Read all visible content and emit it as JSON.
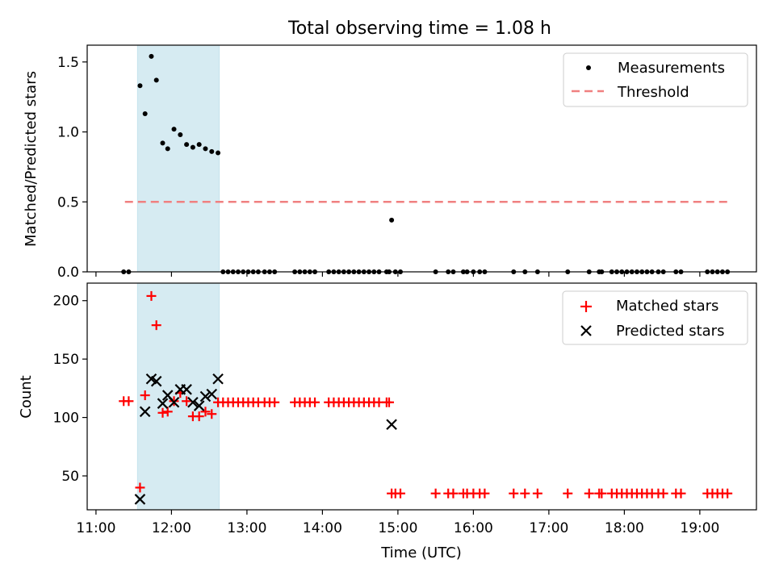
{
  "figure": {
    "title": "Total observing time = 1.08 h",
    "xlabel": "Time (UTC)"
  },
  "chart_data": [
    {
      "type": "scatter",
      "ylabel": "Matched/Predicted stars",
      "xlim": [
        "10:53",
        "19:45"
      ],
      "ylim": [
        0,
        1.62
      ],
      "yticks": [
        "0.0",
        "0.5",
        "1.0",
        "1.5"
      ],
      "yticks_values": [
        0,
        0.5,
        1.0,
        1.5
      ],
      "legend": {
        "placement": "upper right",
        "entries": [
          "Measurements",
          "Threshold"
        ]
      },
      "shaded_span": [
        "11:33",
        "12:38"
      ],
      "threshold": {
        "name": "Threshold",
        "x": [
          "11:23",
          "19:23"
        ],
        "y": 0.5,
        "color": "#f08080"
      },
      "series": [
        {
          "name": "Measurements",
          "color": "#000000",
          "points": [
            [
              "11:22",
              0
            ],
            [
              "11:26",
              0
            ],
            [
              "11:35",
              1.33
            ],
            [
              "11:39",
              1.13
            ],
            [
              "11:44",
              1.54
            ],
            [
              "11:48",
              1.37
            ],
            [
              "11:53",
              0.92
            ],
            [
              "11:57",
              0.88
            ],
            [
              "12:02",
              1.02
            ],
            [
              "12:07",
              0.98
            ],
            [
              "12:12",
              0.91
            ],
            [
              "12:17",
              0.89
            ],
            [
              "12:22",
              0.91
            ],
            [
              "12:27",
              0.88
            ],
            [
              "12:32",
              0.86
            ],
            [
              "12:37",
              0.85
            ],
            [
              "12:41",
              0
            ],
            [
              "12:45",
              0
            ],
            [
              "12:49",
              0
            ],
            [
              "12:53",
              0
            ],
            [
              "12:57",
              0
            ],
            [
              "13:01",
              0
            ],
            [
              "13:05",
              0
            ],
            [
              "13:09",
              0
            ],
            [
              "13:14",
              0
            ],
            [
              "13:18",
              0
            ],
            [
              "13:22",
              0
            ],
            [
              "13:38",
              0
            ],
            [
              "13:42",
              0
            ],
            [
              "13:46",
              0
            ],
            [
              "13:50",
              0
            ],
            [
              "13:54",
              0
            ],
            [
              "14:05",
              0
            ],
            [
              "14:09",
              0
            ],
            [
              "14:13",
              0
            ],
            [
              "14:17",
              0
            ],
            [
              "14:21",
              0
            ],
            [
              "14:25",
              0
            ],
            [
              "14:29",
              0
            ],
            [
              "14:33",
              0
            ],
            [
              "14:37",
              0
            ],
            [
              "14:41",
              0
            ],
            [
              "14:45",
              0
            ],
            [
              "14:51",
              0
            ],
            [
              "14:53",
              0
            ],
            [
              "14:55",
              0.37
            ],
            [
              "14:58",
              0
            ],
            [
              "15:02",
              0
            ],
            [
              "15:30",
              0
            ],
            [
              "15:40",
              0
            ],
            [
              "15:44",
              0
            ],
            [
              "15:52",
              0
            ],
            [
              "15:55",
              0
            ],
            [
              "16:00",
              0
            ],
            [
              "16:05",
              0
            ],
            [
              "16:09",
              0
            ],
            [
              "16:32",
              0
            ],
            [
              "16:41",
              0
            ],
            [
              "16:51",
              0
            ],
            [
              "17:15",
              0
            ],
            [
              "17:32",
              0
            ],
            [
              "17:40",
              0
            ],
            [
              "17:42",
              0
            ],
            [
              "17:50",
              0
            ],
            [
              "17:54",
              0
            ],
            [
              "17:58",
              0
            ],
            [
              "18:02",
              0
            ],
            [
              "18:06",
              0
            ],
            [
              "18:10",
              0
            ],
            [
              "18:14",
              0
            ],
            [
              "18:18",
              0
            ],
            [
              "18:22",
              0
            ],
            [
              "18:27",
              0
            ],
            [
              "18:31",
              0
            ],
            [
              "18:41",
              0
            ],
            [
              "18:45",
              0
            ],
            [
              "19:06",
              0
            ],
            [
              "19:10",
              0
            ],
            [
              "19:14",
              0
            ],
            [
              "19:18",
              0
            ],
            [
              "19:22",
              0
            ]
          ]
        }
      ]
    },
    {
      "type": "scatter",
      "ylabel": "Count",
      "xlim": [
        "10:53",
        "19:45"
      ],
      "ylim": [
        21,
        215
      ],
      "yticks": [
        "50",
        "100",
        "150",
        "200"
      ],
      "yticks_values": [
        50,
        100,
        150,
        200
      ],
      "xticks": [
        "11:00",
        "12:00",
        "13:00",
        "14:00",
        "15:00",
        "16:00",
        "17:00",
        "18:00",
        "19:00"
      ],
      "xticks_values": [
        "11:00",
        "12:00",
        "13:00",
        "14:00",
        "15:00",
        "16:00",
        "17:00",
        "18:00",
        "19:00"
      ],
      "legend": {
        "placement": "upper right",
        "entries": [
          "Matched stars",
          "Predicted stars"
        ]
      },
      "shaded_span": [
        "11:33",
        "12:38"
      ],
      "series": [
        {
          "name": "Matched stars",
          "marker": "plus",
          "color": "#ff0000",
          "points": [
            [
              "11:22",
              114
            ],
            [
              "11:26",
              114
            ],
            [
              "11:35",
              40
            ],
            [
              "11:39",
              119
            ],
            [
              "11:44",
              204
            ],
            [
              "11:48",
              179
            ],
            [
              "11:53",
              104
            ],
            [
              "11:57",
              105
            ],
            [
              "12:02",
              114
            ],
            [
              "12:07",
              121
            ],
            [
              "12:12",
              114
            ],
            [
              "12:17",
              101
            ],
            [
              "12:22",
              101
            ],
            [
              "12:27",
              105
            ],
            [
              "12:32",
              103
            ],
            [
              "12:37",
              113
            ],
            [
              "12:41",
              113
            ],
            [
              "12:45",
              113
            ],
            [
              "12:49",
              113
            ],
            [
              "12:53",
              113
            ],
            [
              "12:57",
              113
            ],
            [
              "13:01",
              113
            ],
            [
              "13:05",
              113
            ],
            [
              "13:09",
              113
            ],
            [
              "13:14",
              113
            ],
            [
              "13:18",
              113
            ],
            [
              "13:22",
              113
            ],
            [
              "13:38",
              113
            ],
            [
              "13:42",
              113
            ],
            [
              "13:46",
              113
            ],
            [
              "13:50",
              113
            ],
            [
              "13:54",
              113
            ],
            [
              "14:05",
              113
            ],
            [
              "14:09",
              113
            ],
            [
              "14:13",
              113
            ],
            [
              "14:17",
              113
            ],
            [
              "14:21",
              113
            ],
            [
              "14:25",
              113
            ],
            [
              "14:29",
              113
            ],
            [
              "14:33",
              113
            ],
            [
              "14:37",
              113
            ],
            [
              "14:41",
              113
            ],
            [
              "14:45",
              113
            ],
            [
              "14:51",
              113
            ],
            [
              "14:53",
              113
            ],
            [
              "14:55",
              35
            ],
            [
              "14:58",
              35
            ],
            [
              "15:02",
              35
            ],
            [
              "15:30",
              35
            ],
            [
              "15:40",
              35
            ],
            [
              "15:44",
              35
            ],
            [
              "15:52",
              35
            ],
            [
              "15:55",
              35
            ],
            [
              "16:00",
              35
            ],
            [
              "16:05",
              35
            ],
            [
              "16:09",
              35
            ],
            [
              "16:32",
              35
            ],
            [
              "16:41",
              35
            ],
            [
              "16:51",
              35
            ],
            [
              "17:15",
              35
            ],
            [
              "17:32",
              35
            ],
            [
              "17:40",
              35
            ],
            [
              "17:42",
              35
            ],
            [
              "17:50",
              35
            ],
            [
              "17:54",
              35
            ],
            [
              "17:58",
              35
            ],
            [
              "18:02",
              35
            ],
            [
              "18:06",
              35
            ],
            [
              "18:10",
              35
            ],
            [
              "18:14",
              35
            ],
            [
              "18:18",
              35
            ],
            [
              "18:22",
              35
            ],
            [
              "18:27",
              35
            ],
            [
              "18:31",
              35
            ],
            [
              "18:41",
              35
            ],
            [
              "18:45",
              35
            ],
            [
              "19:06",
              35
            ],
            [
              "19:10",
              35
            ],
            [
              "19:14",
              35
            ],
            [
              "19:18",
              35
            ],
            [
              "19:22",
              35
            ]
          ]
        },
        {
          "name": "Predicted stars",
          "marker": "x",
          "color": "#000000",
          "points": [
            [
              "11:35",
              30
            ],
            [
              "11:39",
              105
            ],
            [
              "11:44",
              133
            ],
            [
              "11:48",
              131
            ],
            [
              "11:53",
              112
            ],
            [
              "11:57",
              119
            ],
            [
              "12:02",
              113
            ],
            [
              "12:07",
              124
            ],
            [
              "12:12",
              124
            ],
            [
              "12:17",
              113
            ],
            [
              "12:22",
              110
            ],
            [
              "12:27",
              118
            ],
            [
              "12:32",
              120
            ],
            [
              "12:37",
              133
            ],
            [
              "14:55",
              94
            ]
          ]
        }
      ]
    }
  ]
}
